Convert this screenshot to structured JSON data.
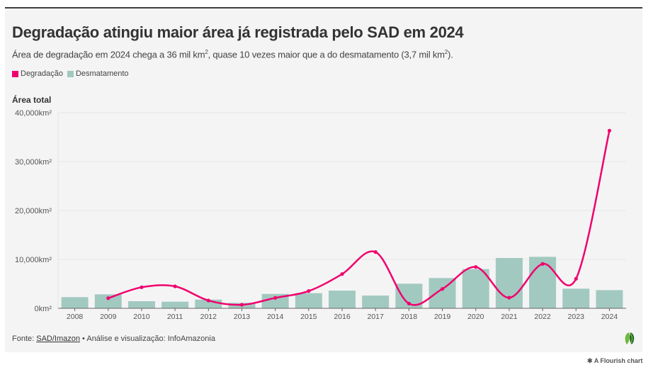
{
  "header": {
    "title": "Degradação atingiu maior área já registrada pelo SAD em 2024",
    "subtitle_parts": [
      "Área de degradação em 2024 chega a 36 mil km",
      "2",
      ", quase 10 vezes maior que a do desmatamento (3,7 mil km",
      "2",
      ")."
    ]
  },
  "legend": [
    {
      "label": "Degradação",
      "color": "#f0006e"
    },
    {
      "label": "Desmatamento",
      "color": "#a2c9c0"
    }
  ],
  "footer": {
    "prefix": "Fonte: ",
    "source_link": "SAD/Imazon",
    "rest": " • Análise e visualização: InfoAmazonia"
  },
  "flourish_credit": "A Flourish chart",
  "chart_data": {
    "type": "bar",
    "title": "Degradação atingiu maior área já registrada pelo SAD em 2024",
    "subtitle": "Área de degradação em 2024 chega a 36 mil km², quase 10 vezes maior que a do desmatamento (3,7 mil km²).",
    "xlabel": "",
    "ylabel": "Área total",
    "ylim": [
      0,
      40000
    ],
    "yticks": [
      0,
      10000,
      20000,
      30000,
      40000
    ],
    "ytick_labels": [
      "0km²",
      "10,000km²",
      "20,000km²",
      "30,000km²",
      "40,000km²"
    ],
    "grid": true,
    "legend_position": "top-left",
    "categories": [
      "2008",
      "2009",
      "2010",
      "2011",
      "2012",
      "2013",
      "2014",
      "2015",
      "2016",
      "2017",
      "2018",
      "2019",
      "2020",
      "2021",
      "2022",
      "2023",
      "2024"
    ],
    "series": [
      {
        "name": "Desmatamento",
        "type": "bar",
        "color": "#a2c9c0",
        "values": [
          2280,
          2850,
          1450,
          1350,
          1780,
          1110,
          2940,
          3090,
          3620,
          2610,
          5030,
          6190,
          8020,
          10290,
          10530,
          4010,
          3720
        ]
      },
      {
        "name": "Degradação",
        "type": "line",
        "color": "#f0006e",
        "values": [
          null,
          2070,
          4300,
          4490,
          1590,
          720,
          2130,
          3530,
          7000,
          11500,
          970,
          3960,
          8450,
          2170,
          9080,
          6040,
          36330
        ]
      }
    ]
  }
}
